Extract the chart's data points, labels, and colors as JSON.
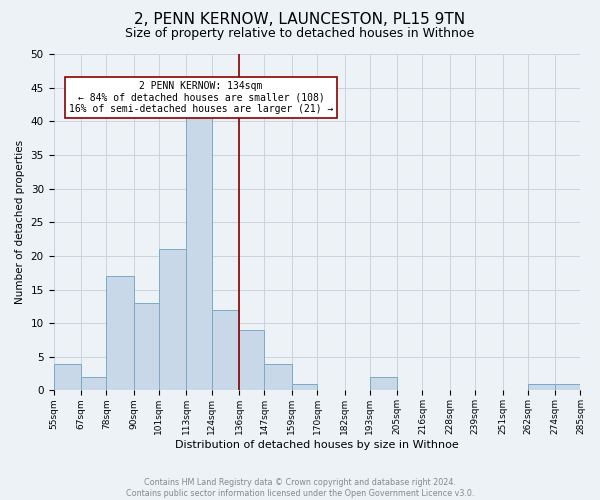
{
  "title": "2, PENN KERNOW, LAUNCESTON, PL15 9TN",
  "subtitle": "Size of property relative to detached houses in Withnoe",
  "xlabel": "Distribution of detached houses by size in Withnoe",
  "ylabel": "Number of detached properties",
  "footer_line1": "Contains HM Land Registry data © Crown copyright and database right 2024.",
  "footer_line2": "Contains public sector information licensed under the Open Government Licence v3.0.",
  "bins": [
    55,
    67,
    78,
    90,
    101,
    113,
    124,
    136,
    147,
    159,
    170,
    182,
    193,
    205,
    216,
    228,
    239,
    251,
    262,
    274,
    285
  ],
  "counts": [
    4,
    2,
    17,
    13,
    21,
    41,
    12,
    9,
    4,
    1,
    0,
    0,
    2,
    0,
    0,
    0,
    0,
    0,
    1,
    1
  ],
  "bar_color": "#c8d8e8",
  "bar_edge_color": "#7aaac8",
  "reference_line_x": 136,
  "reference_line_color": "#8b0000",
  "annotation_box_edge_color": "#8b0000",
  "annotation_line1": "2 PENN KERNOW: 134sqm",
  "annotation_line2": "← 84% of detached houses are smaller (108)",
  "annotation_line3": "16% of semi-detached houses are larger (21) →",
  "ylim": [
    0,
    50
  ],
  "background_color": "#edf2f7",
  "plot_background_color": "#edf2f7",
  "grid_color": "#c8d4de",
  "title_fontsize": 11,
  "subtitle_fontsize": 9,
  "tick_labels": [
    "55sqm",
    "67sqm",
    "78sqm",
    "90sqm",
    "101sqm",
    "113sqm",
    "124sqm",
    "136sqm",
    "147sqm",
    "159sqm",
    "170sqm",
    "182sqm",
    "193sqm",
    "205sqm",
    "216sqm",
    "228sqm",
    "239sqm",
    "251sqm",
    "262sqm",
    "274sqm",
    "285sqm"
  ]
}
